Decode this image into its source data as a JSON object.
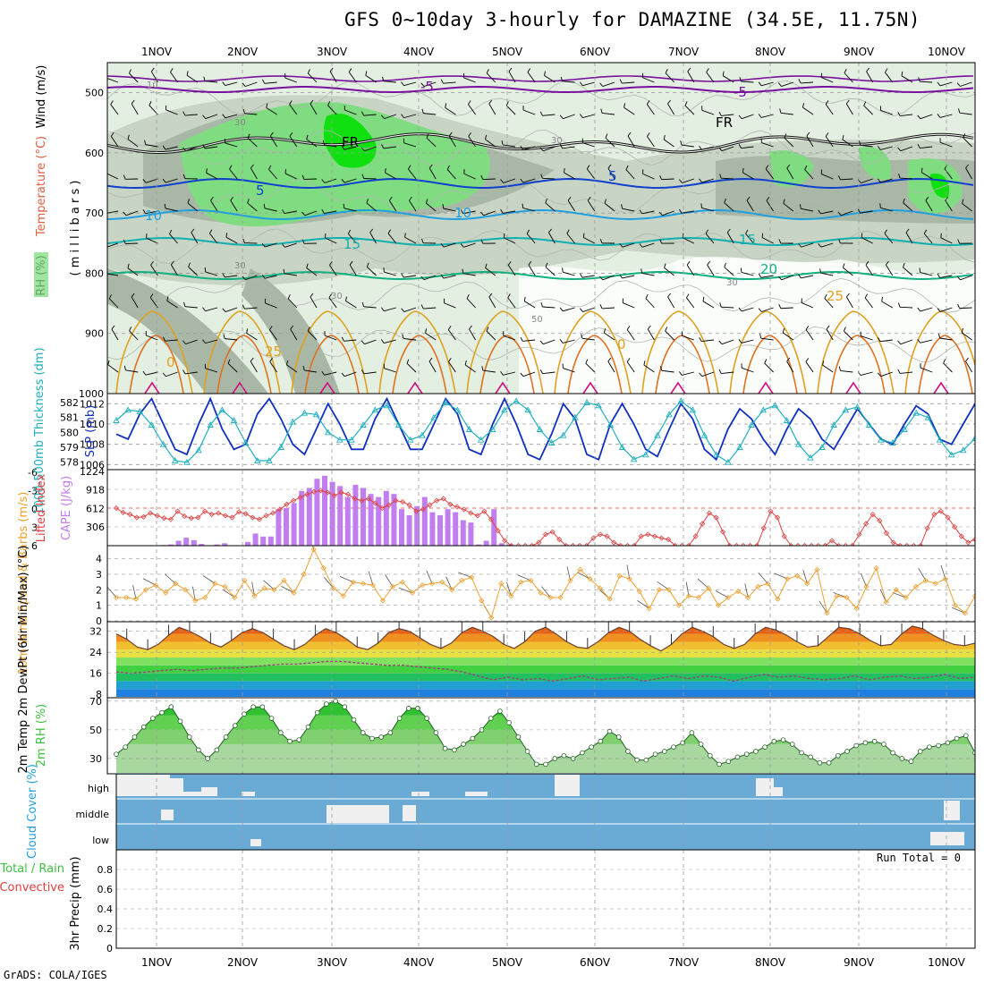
{
  "title": "GFS 0~10day 3-hourly for DAMAZINE (34.5E, 11.75N)",
  "footer": "GrADS: COLA/IGES",
  "colors": {
    "rh_light": "#e3efe0",
    "rh_mid": "#c8d4c4",
    "rh_dark": "#a9b8a6",
    "rh_green": "#80dc80",
    "rh_bright": "#10e010",
    "slp": "#1030c0",
    "thickness": "#20b0c0",
    "lifted_index": "#e04040",
    "cape": "#c07ef0",
    "wind10": "#f0a030",
    "cloud": "#6aabd6",
    "cloud_clear": "#f0f0f0",
    "rh2m": "#40c040"
  },
  "chart_data": [
    {
      "type": "heatmap",
      "name": "upper-air cross-section",
      "ylabel_parts": [
        "RH (%)",
        "Temperature (°C)",
        "Wind (m/s)"
      ],
      "yunit": "( m i l l i b a r s )",
      "y_ticks": [
        500,
        600,
        700,
        800,
        900,
        1000
      ],
      "ylim": [
        1000,
        450
      ],
      "x_ticks": [
        "1NOV",
        "2NOV",
        "3NOV",
        "4NOV",
        "5NOV",
        "6NOV",
        "7NOV",
        "8NOV",
        "9NOV",
        "10NOV"
      ],
      "contour_labels": [
        "-5",
        "-5",
        "FR",
        "FR",
        "5",
        "5",
        "10",
        "10",
        "15",
        "15",
        "20",
        "25",
        "25",
        "10",
        "30",
        "30",
        "30",
        "30",
        "50",
        "30",
        "0",
        "0"
      ],
      "isotherms_rep": [
        {
          "label": "-5",
          "level": 495
        },
        {
          "label": "FR",
          "level": 570
        },
        {
          "label": "5",
          "level": 645
        },
        {
          "label": "10",
          "level": 700
        },
        {
          "label": "15",
          "level": 750
        },
        {
          "label": "20",
          "level": 808
        },
        {
          "label": "25",
          "level": 860
        }
      ]
    },
    {
      "type": "line",
      "name": "SLP and 1000-500mb thickness",
      "ylabel_left": "1000-500mb Thickness (dm)",
      "ylabel_right": "SLP (mb)",
      "left_ticks": [
        578,
        579,
        580,
        581,
        582
      ],
      "right_ticks": [
        1006,
        1008,
        1010,
        1012
      ],
      "slp": [
        1009,
        1008.5,
        1011,
        1012.5,
        1010,
        1007.5,
        1007,
        1010,
        1012.5,
        1009.5,
        1007.5,
        1008,
        1011,
        1012.5,
        1010.5,
        1008,
        1007,
        1009.5,
        1012,
        1010,
        1007.5,
        1007.5,
        1010.5,
        1012.5,
        1010,
        1007.5,
        1007.5,
        1010,
        1012.5,
        1011,
        1007.5,
        1007,
        1010,
        1012.5,
        1010,
        1007,
        1006.5,
        1009,
        1012,
        1010.5,
        1007,
        1006.5,
        1010,
        1012,
        1010,
        1007.5,
        1006.8,
        1009.5,
        1012,
        1010.5,
        1007.5,
        1006.5,
        1009.5,
        1011.5,
        1010.5,
        1008.5,
        1007,
        1009.5,
        1011.5,
        1010.5,
        1008.5,
        1007.5,
        1009.5,
        1011.5,
        1010,
        1008.5,
        1008,
        1010,
        1011.8,
        1011,
        1008.5,
        1008,
        1010,
        1012
      ],
      "thickness": [
        580.8,
        581.5,
        581.4,
        580.5,
        579.2,
        578.1,
        578,
        578.8,
        580.5,
        581.5,
        580.8,
        579.3,
        578.1,
        578.1,
        579,
        580.7,
        581.3,
        581.2,
        580,
        579.5,
        579.5,
        580.5,
        581.5,
        581.8,
        580.5,
        579.5,
        579.8,
        581,
        582,
        581.5,
        580.2,
        579.5,
        580.2,
        581.5,
        582.1,
        581.5,
        580.2,
        579.3,
        579.8,
        581,
        582,
        581.8,
        580.5,
        579,
        578.2,
        578.5,
        579.8,
        581.2,
        582.1,
        581.5,
        579.8,
        578.5,
        578,
        579,
        580.5,
        581.5,
        581.8,
        580.8,
        579.2,
        578.3,
        579,
        580.5,
        581.5,
        581.7,
        580.5,
        579.5,
        579.3,
        580.2,
        581.3,
        581,
        579.5,
        578.5,
        578.8,
        579.6
      ]
    },
    {
      "type": "bar",
      "name": "Lifted Index and CAPE",
      "ylabel_left": "Lifted Index",
      "ylabel_right": "CAPE (J/kg)",
      "left_ticks": [
        "-6",
        "-3",
        "0",
        "3",
        "6"
      ],
      "right_ticks": [
        306,
        612,
        918,
        1224
      ],
      "cape": [
        0,
        0,
        0,
        0,
        10,
        20,
        80,
        130,
        90,
        30,
        0,
        20,
        40,
        0,
        0,
        60,
        200,
        150,
        150,
        600,
        620,
        700,
        900,
        950,
        1100,
        1150,
        1050,
        980,
        800,
        1000,
        950,
        850,
        800,
        900,
        850,
        600,
        500,
        650,
        800,
        550,
        500,
        600,
        550,
        420,
        380,
        20,
        80,
        600,
        40,
        20,
        0,
        0
      ],
      "lifted_index": [
        0,
        0.7,
        1,
        1.5,
        1.4,
        0.8,
        1.2,
        1.6,
        1.8,
        0.5,
        1.3,
        1.6,
        1.5,
        0.5,
        1,
        0.8,
        1.2,
        1.5,
        0.6,
        0.9,
        1.5,
        1.8,
        1.2,
        0.8,
        0.2,
        -0.6,
        -1.2,
        -1.7,
        -2.2,
        -2.6,
        -2.8,
        -2.5,
        -2,
        -2.5,
        -2.2,
        -1.5,
        -1.2,
        -1.5,
        -0.8,
        0,
        -0.5,
        -1.2,
        -1,
        -0.5,
        0.5,
        0.2,
        -0.5,
        -1.2,
        -1.5,
        -0.6,
        -0.2,
        0.2,
        0.8,
        1.2,
        0.5,
        1.8,
        3.6,
        5.2,
        6,
        6,
        6,
        6,
        5.5,
        4.2,
        3.8,
        5,
        6,
        6,
        6,
        6,
        4.8,
        4.2,
        4.5,
        5.5,
        6,
        6,
        6,
        4.5,
        4.2,
        4.5,
        4.8,
        5,
        6,
        6,
        6,
        4.5,
        2.5,
        0.8,
        1.5,
        3.8,
        6,
        6,
        6,
        6,
        6,
        3.2,
        0.5,
        1.5,
        4.5,
        6,
        6,
        6,
        6,
        6,
        6,
        5.2,
        6,
        6,
        6,
        4.2,
        2.5,
        1,
        2,
        4,
        5.5,
        6,
        6,
        6,
        6,
        3.2,
        1,
        0.5,
        1.5,
        3,
        4.5,
        5.5,
        5
      ]
    },
    {
      "type": "line",
      "name": "10m Wind Speed & Barbs",
      "ylabel": "10m Wind Speed & Barbs (m/s)",
      "y_ticks": [
        0,
        1,
        2,
        3,
        4
      ],
      "values": [
        1.5,
        1.5,
        1.4,
        2,
        2.3,
        1.8,
        2.4,
        2,
        1.3,
        1.5,
        2.4,
        2.2,
        1.5,
        2.6,
        1.6,
        2.1,
        2,
        2.6,
        1.8,
        3,
        4.6,
        3.4,
        2.1,
        1.6,
        2.5,
        2.4,
        2.3,
        1.3,
        2.2,
        2.5,
        1.8,
        2.3,
        2.4,
        2.5,
        2,
        2.6,
        2.8,
        1.3,
        0.2,
        2.4,
        1.6,
        2.5,
        2.6,
        1.8,
        1.5,
        1.5,
        2.6,
        3.3,
        2.7,
        2.1,
        1.4,
        2.9,
        2.7,
        1.9,
        0.8,
        2,
        2,
        1,
        1.6,
        1.5,
        2.1,
        1,
        1.5,
        1.9,
        1.5,
        2.2,
        2.4,
        1.4,
        2.7,
        2.9,
        2.4,
        3.3,
        0.5,
        1.6,
        1.5,
        0.8,
        2.2,
        3.4,
        1.2,
        2,
        1.5,
        2.2,
        2.6,
        2.4,
        2.7,
        1,
        0.5,
        1.6
      ]
    },
    {
      "type": "area",
      "name": "2m Temp and DewPt",
      "ylabel": "2m Temp 2m DewPt (6hr Min/Max) (°C)",
      "y_ticks": [
        8,
        16,
        24,
        32
      ],
      "temp": [
        31,
        29,
        26,
        25,
        27,
        30.5,
        33.5,
        32,
        30,
        27.5,
        26,
        28.5,
        31.5,
        33,
        31.5,
        29,
        26.5,
        25,
        27,
        30.5,
        33,
        31.5,
        29,
        26,
        25,
        27.5,
        31.5,
        33,
        32,
        29.5,
        27,
        25.5,
        27.5,
        31.5,
        33.5,
        32,
        30,
        27,
        25.5,
        28,
        32,
        33.5,
        31,
        28,
        26,
        25.5,
        28,
        31.5,
        33.5,
        32,
        29,
        26.5,
        24.5,
        27,
        31,
        33.5,
        32,
        30,
        27,
        25.5,
        27,
        31,
        33.5,
        32.5,
        30.5,
        28,
        26,
        26.5,
        30,
        33.5,
        33,
        31,
        28.5,
        26.5,
        27,
        31,
        34,
        33,
        30.5,
        28.5,
        27,
        26.5,
        27.5
      ],
      "dewpt": [
        16.5,
        16,
        16.5,
        17,
        17.5,
        17,
        17.5,
        18,
        18,
        18.5,
        19,
        19.5,
        19.5,
        20,
        20.5,
        20.5,
        20,
        19.5,
        19,
        19,
        18.5,
        18,
        17.5,
        16.5,
        15,
        13.5,
        14.5,
        13.5,
        14,
        13,
        14,
        15,
        13.5,
        14,
        14.5,
        13,
        14,
        15,
        14,
        15,
        14.5,
        13,
        14.5,
        15.5,
        14.5,
        15,
        14,
        13.5,
        14,
        15,
        13.5,
        14.5,
        15,
        14,
        14.5,
        15.5,
        14,
        14.5
      ]
    },
    {
      "type": "area",
      "name": "2m RH",
      "ylabel": "2m RH (%)",
      "y_ticks": [
        30,
        50,
        70
      ],
      "values": [
        33,
        38,
        45,
        52,
        58,
        62,
        66,
        56,
        45,
        36,
        30,
        36,
        45,
        53,
        61,
        66,
        66,
        58,
        48,
        42,
        43,
        52,
        62,
        68,
        70,
        66,
        57,
        48,
        44,
        45,
        48,
        58,
        65,
        65,
        58,
        48,
        37,
        36,
        40,
        44,
        50,
        58,
        63,
        55,
        45,
        35,
        26,
        26,
        30,
        32,
        30,
        34,
        38,
        42,
        49,
        45,
        35,
        29,
        29,
        33,
        35,
        38,
        41,
        48,
        40,
        32,
        26,
        28,
        31,
        33,
        35,
        38,
        42,
        43,
        40,
        34,
        31,
        27,
        27,
        32,
        35,
        39,
        41,
        42,
        40,
        34,
        30,
        28,
        35,
        38,
        39,
        41,
        44,
        46,
        34
      ]
    },
    {
      "type": "heatmap",
      "name": "Cloud Cover",
      "ylabel": "Cloud Cover (%)",
      "rows": [
        "high",
        "middle",
        "low"
      ]
    },
    {
      "type": "bar",
      "name": "3hr Precip",
      "ylabel_parts": [
        "Total / Rain",
        "Convective",
        "3hr Precip (mm)"
      ],
      "y_ticks": [
        0,
        0.2,
        0.4,
        0.6,
        0.8
      ],
      "ylim": [
        0,
        1
      ],
      "annotation": "Run Total = 0",
      "values": []
    }
  ]
}
